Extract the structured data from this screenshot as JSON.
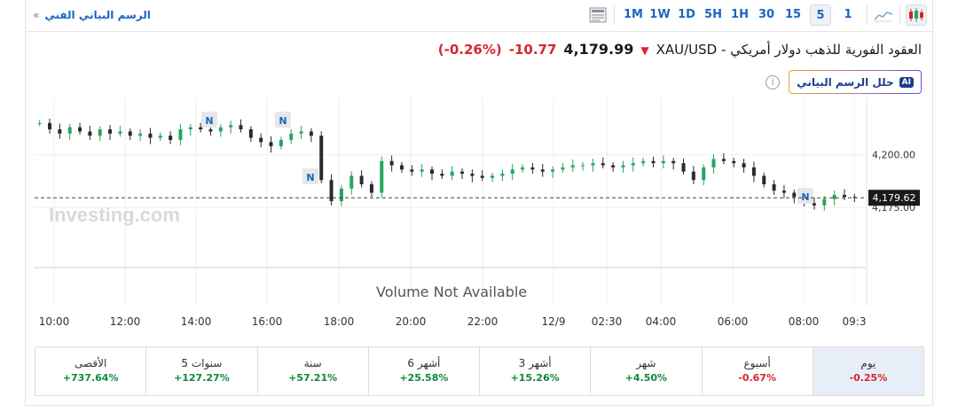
{
  "toolbar": {
    "technical_chart_link": "الرسم البياني الفني",
    "link_chevron": "»",
    "timeframes": [
      "1",
      "5",
      "15",
      "30",
      "1H",
      "5H",
      "1D",
      "1W",
      "1M"
    ],
    "active_timeframe": "5",
    "icons": [
      "candlestick-icon",
      "line-chart-icon",
      "layout-icon"
    ]
  },
  "quote": {
    "instrument": "XAU/USD - العقود الفورية للذهب دولار أمريكي",
    "price": "4,179.99",
    "change": "-10.77",
    "change_pct": "(-0.26%)",
    "direction": "down"
  },
  "ai": {
    "badge": "AI",
    "label": "حلل الرسم البياني",
    "info_icon": "i"
  },
  "chart": {
    "watermark": "Investing.com",
    "volume_label": "Volume Not Available",
    "current_price_label": "4,179.62",
    "news_marker": "N",
    "colors": {
      "up": "#26a65b",
      "down": "#2b2b2b",
      "price_tag": "#1a1a1a"
    }
  },
  "chart_data": {
    "type": "candlestick",
    "x_ticks": [
      "10:00",
      "12:00",
      "14:00",
      "16:00",
      "18:00",
      "20:00",
      "22:00",
      "12/9",
      "02:30",
      "04:00",
      "06:00",
      "08:00",
      "09:3"
    ],
    "y_ticks": [
      "4,200.00",
      "4,175.00"
    ],
    "ylim": [
      4160,
      4225
    ],
    "last_price": 4179.62,
    "close_path": [
      4215,
      4212,
      4210,
      4213,
      4211,
      4209,
      4212,
      4210,
      4211,
      4209,
      4210,
      4208,
      4209,
      4207,
      4212,
      4213,
      4212,
      4211,
      4213,
      4214,
      4212,
      4208,
      4206,
      4204,
      4207,
      4210,
      4211,
      4209,
      4188,
      4178,
      4184,
      4190,
      4186,
      4182,
      4197,
      4195,
      4193,
      4192,
      4193,
      4191,
      4190,
      4192,
      4191,
      4190,
      4189,
      4190,
      4191,
      4193,
      4194,
      4193,
      4192,
      4193,
      4194,
      4195,
      4195,
      4196,
      4195,
      4194,
      4195,
      4196,
      4197,
      4196,
      4197,
      4196,
      4192,
      4188,
      4194,
      4198,
      4197,
      4196,
      4194,
      4190,
      4186,
      4183,
      4182,
      4180,
      4177,
      4176,
      4179,
      4181,
      4180,
      4179.62
    ]
  },
  "performance": [
    {
      "label": "يوم",
      "value": "-0.25%",
      "sign": "neg",
      "active": true
    },
    {
      "label": "أسبوع",
      "value": "-0.67%",
      "sign": "neg",
      "active": false
    },
    {
      "label": "شهر",
      "value": "+4.50%",
      "sign": "pos",
      "active": false
    },
    {
      "label": "3 أشهر",
      "value": "+15.26%",
      "sign": "pos",
      "active": false
    },
    {
      "label": "6 أشهر",
      "value": "+25.58%",
      "sign": "pos",
      "active": false
    },
    {
      "label": "سنة",
      "value": "+57.21%",
      "sign": "pos",
      "active": false
    },
    {
      "label": "5 سنوات",
      "value": "+127.27%",
      "sign": "pos",
      "active": false
    },
    {
      "label": "الأقصى",
      "value": "+737.64%",
      "sign": "pos",
      "active": false
    }
  ]
}
